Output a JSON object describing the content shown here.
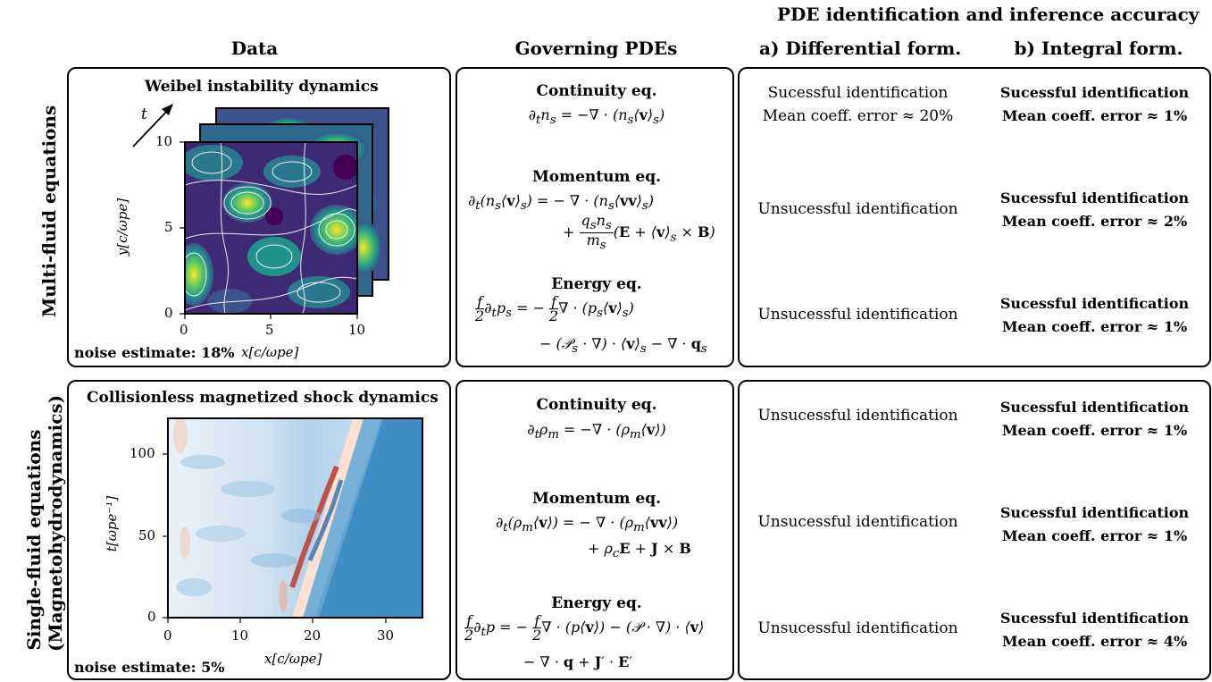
{
  "header": {
    "top_title": "PDE identification and inference accuracy",
    "col_data": "Data",
    "col_pdes": "Governing PDEs",
    "col_diff": "a) Differential form.",
    "col_int": "b) Integral form."
  },
  "rows": {
    "multi_label": "Multi-fluid equations",
    "single_label_1": "Single-fluid equations",
    "single_label_2": "(Magnetohydrodynamics)"
  },
  "weibel": {
    "title": "Weibel instability dynamics",
    "noise": "noise estimate: 18%",
    "xlabel": "x[c/ωpe]",
    "ylabel": "y[c/ωpe]",
    "t_label": "t",
    "xticks": [
      "0",
      "5",
      "10"
    ],
    "yticks": [
      "0",
      "5",
      "10"
    ]
  },
  "shock": {
    "title": "Collisionless magnetized shock dynamics",
    "noise": "noise estimate: 5%",
    "xlabel": "x[c/ωpe]",
    "ylabel": "t[ωpe⁻¹]",
    "xticks": [
      "0",
      "10",
      "20",
      "30"
    ],
    "yticks": [
      "0",
      "50",
      "100"
    ]
  },
  "pdes_multi": {
    "continuity_title": "Continuity eq.",
    "momentum_title": "Momentum eq.",
    "energy_title": "Energy eq."
  },
  "pdes_single": {
    "continuity_title": "Continuity eq.",
    "momentum_title": "Momentum eq.",
    "energy_title": "Energy eq."
  },
  "results_multi_diff": {
    "cont_1": "Sucessful identification",
    "cont_2": "Mean coeff. error ≈ 20%",
    "mom": "Unsucessful identification",
    "energy": "Unsucessful identification"
  },
  "results_multi_int": {
    "cont_1": "Sucessful identification",
    "cont_2": "Mean coeff. error ≈ 1%",
    "mom_1": "Sucessful identification",
    "mom_2": "Mean coeff. error ≈ 2%",
    "energy_1": "Sucessful identification",
    "energy_2": "Mean coeff. error ≈ 1%"
  },
  "results_single_diff": {
    "cont": "Unsucessful identification",
    "mom": "Unsucessful identification",
    "energy": "Unsucessful identification"
  },
  "results_single_int": {
    "cont_1": "Sucessful identification",
    "cont_2": "Mean coeff. error ≈ 1%",
    "mom_1": "Sucessful identification",
    "mom_2": "Mean coeff. error ≈ 1%",
    "energy_1": "Sucessful identification",
    "energy_2": "Mean coeff. error ≈ 4%"
  },
  "colors": {
    "viridis_dark": "#440154",
    "viridis_mid": "#21918c",
    "viridis_light": "#fde725",
    "shock_blue": "#3f8fc5",
    "shock_red": "#c0392b"
  }
}
